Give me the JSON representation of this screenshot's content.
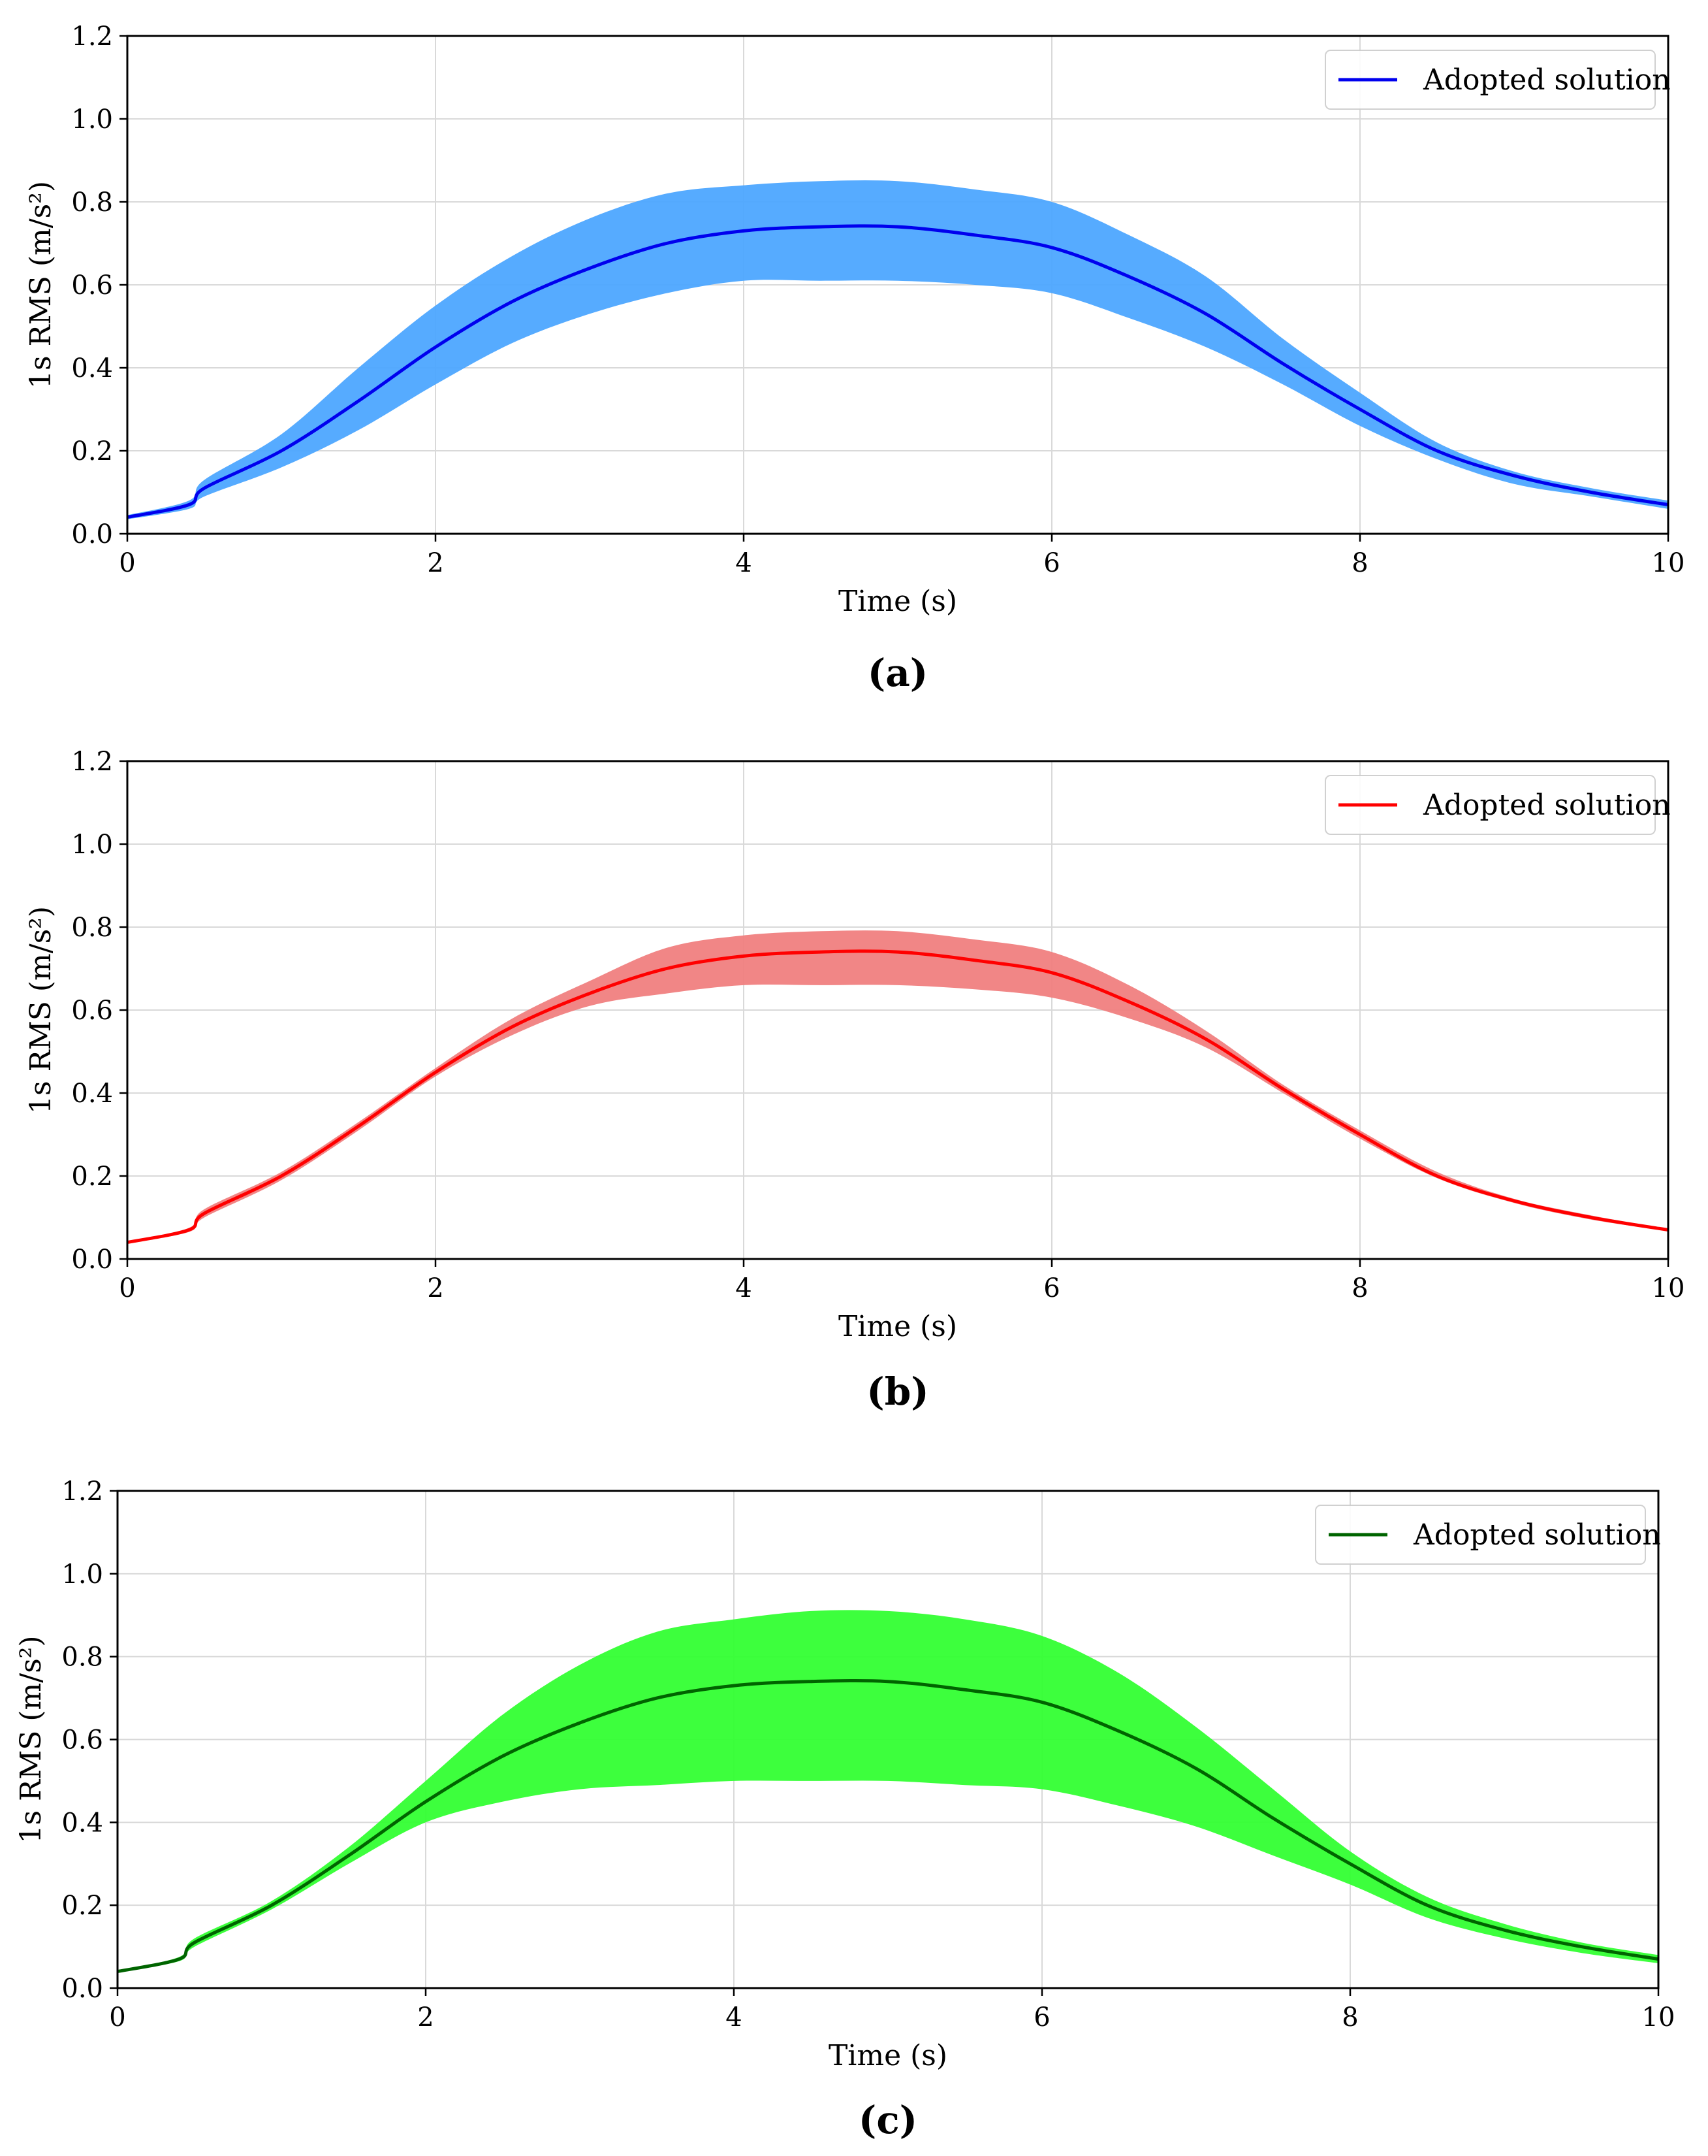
{
  "figure": {
    "panel_labels": [
      "(a)",
      "(b)",
      "(c)"
    ]
  },
  "chart_data": [
    {
      "type": "line",
      "panel": "(a)",
      "xlabel": "Time (s)",
      "ylabel": "1s RMS (m/s²)",
      "xlim": [
        0,
        10
      ],
      "ylim": [
        0,
        1.2
      ],
      "xticks": [
        0,
        2,
        4,
        6,
        8,
        10
      ],
      "yticks": [
        0.0,
        0.2,
        0.4,
        0.6,
        0.8,
        1.0,
        1.2
      ],
      "grid": true,
      "legend": {
        "label": "Adopted solution",
        "placement": "top-right"
      },
      "line_color": "#0000ee",
      "band_color": "#4da6ff",
      "x": [
        0,
        0.4,
        0.5,
        1.0,
        1.5,
        2.0,
        2.5,
        3.0,
        3.5,
        4.0,
        4.5,
        5.0,
        5.5,
        6.0,
        6.5,
        7.0,
        7.5,
        8.0,
        8.5,
        9.0,
        9.5,
        10.0
      ],
      "series": [
        {
          "name": "Adopted solution",
          "values": [
            0.04,
            0.07,
            0.11,
            0.2,
            0.32,
            0.45,
            0.56,
            0.64,
            0.7,
            0.73,
            0.74,
            0.74,
            0.72,
            0.69,
            0.62,
            0.53,
            0.41,
            0.3,
            0.2,
            0.14,
            0.1,
            0.07
          ]
        },
        {
          "name": "Upper bound",
          "values": [
            0.045,
            0.08,
            0.13,
            0.24,
            0.4,
            0.55,
            0.67,
            0.76,
            0.82,
            0.84,
            0.85,
            0.85,
            0.83,
            0.8,
            0.72,
            0.62,
            0.47,
            0.34,
            0.22,
            0.15,
            0.11,
            0.08
          ]
        },
        {
          "name": "Lower bound",
          "values": [
            0.035,
            0.06,
            0.09,
            0.16,
            0.25,
            0.36,
            0.46,
            0.53,
            0.58,
            0.61,
            0.61,
            0.61,
            0.6,
            0.58,
            0.52,
            0.45,
            0.36,
            0.26,
            0.18,
            0.12,
            0.09,
            0.06
          ]
        }
      ]
    },
    {
      "type": "line",
      "panel": "(b)",
      "xlabel": "Time (s)",
      "ylabel": "1s RMS (m/s²)",
      "xlim": [
        0,
        10
      ],
      "ylim": [
        0,
        1.2
      ],
      "xticks": [
        0,
        2,
        4,
        6,
        8,
        10
      ],
      "yticks": [
        0.0,
        0.2,
        0.4,
        0.6,
        0.8,
        1.0,
        1.2
      ],
      "grid": true,
      "legend": {
        "label": "Adopted solution",
        "placement": "top-right"
      },
      "line_color": "#ff0000",
      "band_color": "#f08080",
      "x": [
        0,
        0.4,
        0.5,
        1.0,
        1.5,
        2.0,
        2.5,
        3.0,
        3.5,
        4.0,
        4.5,
        5.0,
        5.5,
        6.0,
        6.5,
        7.0,
        7.5,
        8.0,
        8.5,
        9.0,
        9.5,
        10.0
      ],
      "series": [
        {
          "name": "Adopted solution",
          "values": [
            0.04,
            0.07,
            0.11,
            0.2,
            0.32,
            0.45,
            0.56,
            0.64,
            0.7,
            0.73,
            0.74,
            0.74,
            0.72,
            0.69,
            0.62,
            0.53,
            0.41,
            0.3,
            0.2,
            0.14,
            0.1,
            0.07
          ]
        },
        {
          "name": "Upper bound",
          "values": [
            0.042,
            0.075,
            0.12,
            0.21,
            0.33,
            0.46,
            0.58,
            0.67,
            0.75,
            0.78,
            0.79,
            0.79,
            0.77,
            0.74,
            0.66,
            0.55,
            0.42,
            0.31,
            0.21,
            0.145,
            0.105,
            0.072
          ]
        },
        {
          "name": "Lower bound",
          "values": [
            0.038,
            0.065,
            0.1,
            0.19,
            0.31,
            0.44,
            0.54,
            0.61,
            0.64,
            0.66,
            0.66,
            0.66,
            0.65,
            0.63,
            0.58,
            0.51,
            0.4,
            0.29,
            0.195,
            0.135,
            0.095,
            0.068
          ]
        }
      ]
    },
    {
      "type": "line",
      "panel": "(c)",
      "xlabel": "Time (s)",
      "ylabel": "1s RMS (m/s²)",
      "xlim": [
        0,
        10
      ],
      "ylim": [
        0,
        1.2
      ],
      "xticks": [
        0,
        2,
        4,
        6,
        8,
        10
      ],
      "yticks": [
        0.0,
        0.2,
        0.4,
        0.6,
        0.8,
        1.0,
        1.2
      ],
      "grid": true,
      "legend": {
        "label": "Adopted solution",
        "placement": "top-right"
      },
      "line_color": "#006400",
      "band_color": "#33ff33",
      "x": [
        0,
        0.4,
        0.5,
        1.0,
        1.5,
        2.0,
        2.5,
        3.0,
        3.5,
        4.0,
        4.5,
        5.0,
        5.5,
        6.0,
        6.5,
        7.0,
        7.5,
        8.0,
        8.5,
        9.0,
        9.5,
        10.0
      ],
      "series": [
        {
          "name": "Adopted solution",
          "values": [
            0.04,
            0.07,
            0.11,
            0.2,
            0.32,
            0.45,
            0.56,
            0.64,
            0.7,
            0.73,
            0.74,
            0.74,
            0.72,
            0.69,
            0.62,
            0.53,
            0.41,
            0.3,
            0.2,
            0.14,
            0.1,
            0.07
          ]
        },
        {
          "name": "Upper bound",
          "values": [
            0.042,
            0.075,
            0.12,
            0.21,
            0.34,
            0.5,
            0.66,
            0.78,
            0.86,
            0.89,
            0.91,
            0.91,
            0.89,
            0.85,
            0.76,
            0.63,
            0.48,
            0.33,
            0.22,
            0.155,
            0.11,
            0.08
          ]
        },
        {
          "name": "Lower bound",
          "values": [
            0.038,
            0.065,
            0.1,
            0.19,
            0.3,
            0.4,
            0.45,
            0.48,
            0.49,
            0.5,
            0.5,
            0.5,
            0.49,
            0.48,
            0.44,
            0.39,
            0.32,
            0.25,
            0.17,
            0.12,
            0.085,
            0.06
          ]
        }
      ]
    }
  ]
}
